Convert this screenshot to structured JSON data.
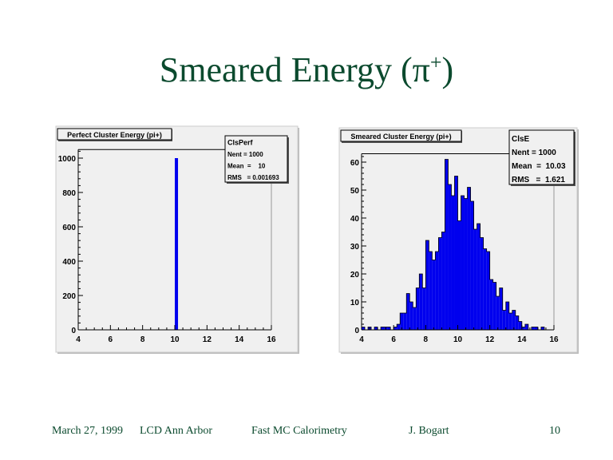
{
  "slide": {
    "title": "Smeared Energy (π",
    "title_sup": "+",
    "title_end": ")"
  },
  "footer": {
    "date": "March 27, 1999",
    "event": "LCD Ann Arbor",
    "topic": "Fast MC Calorimetry",
    "author": "J. Bogart",
    "page": "10"
  },
  "colors": {
    "bar": "#0000ee",
    "panel": "#f0f0f0",
    "title": "#0b4a2e"
  },
  "chart_data": [
    {
      "type": "bar",
      "title": "Perfect Cluster Energy (pi+)",
      "xlim": [
        4,
        16
      ],
      "ylim": [
        0,
        1050
      ],
      "xticks": [
        "4",
        "6",
        "8",
        "10",
        "12",
        "14",
        "16"
      ],
      "yticks": [
        "0",
        "200",
        "400",
        "600",
        "800",
        "1000"
      ],
      "ytick_values": [
        0,
        200,
        400,
        600,
        800,
        1000
      ],
      "bin_width": 0.2,
      "bins": [
        {
          "x": 10.0,
          "count": 1000
        }
      ],
      "stats": {
        "name": "ClsPerf",
        "lines": [
          "Nent = 1000",
          "Mean  =    10",
          "RMS   = 0.001693"
        ]
      }
    },
    {
      "type": "bar",
      "title": "Smeared Cluster Energy (pi+)",
      "xlim": [
        4,
        16
      ],
      "ylim": [
        0,
        63
      ],
      "xticks": [
        "4",
        "6",
        "8",
        "10",
        "12",
        "14",
        "16"
      ],
      "yticks": [
        "0",
        "10",
        "20",
        "30",
        "40",
        "50",
        "60"
      ],
      "ytick_values": [
        0,
        10,
        20,
        30,
        40,
        50,
        60
      ],
      "bin_width": 0.2,
      "bin_start": 4,
      "counts": [
        1,
        0,
        1,
        0,
        1,
        0,
        1,
        1,
        1,
        0,
        1,
        2,
        6,
        6,
        13,
        10,
        8,
        15,
        20,
        15,
        32,
        28,
        25,
        28,
        33,
        35,
        61,
        52,
        48,
        55,
        39,
        48,
        47,
        51,
        46,
        36,
        38,
        33,
        29,
        28,
        18,
        17,
        12,
        15,
        7,
        10,
        6,
        7,
        5,
        3,
        1,
        2,
        0,
        1,
        1,
        0,
        1,
        0,
        0,
        0
      ],
      "stats": {
        "name": "ClsE",
        "lines": [
          "Nent = 1000",
          "Mean  =  10.03",
          "RMS   =  1.621"
        ]
      }
    }
  ]
}
